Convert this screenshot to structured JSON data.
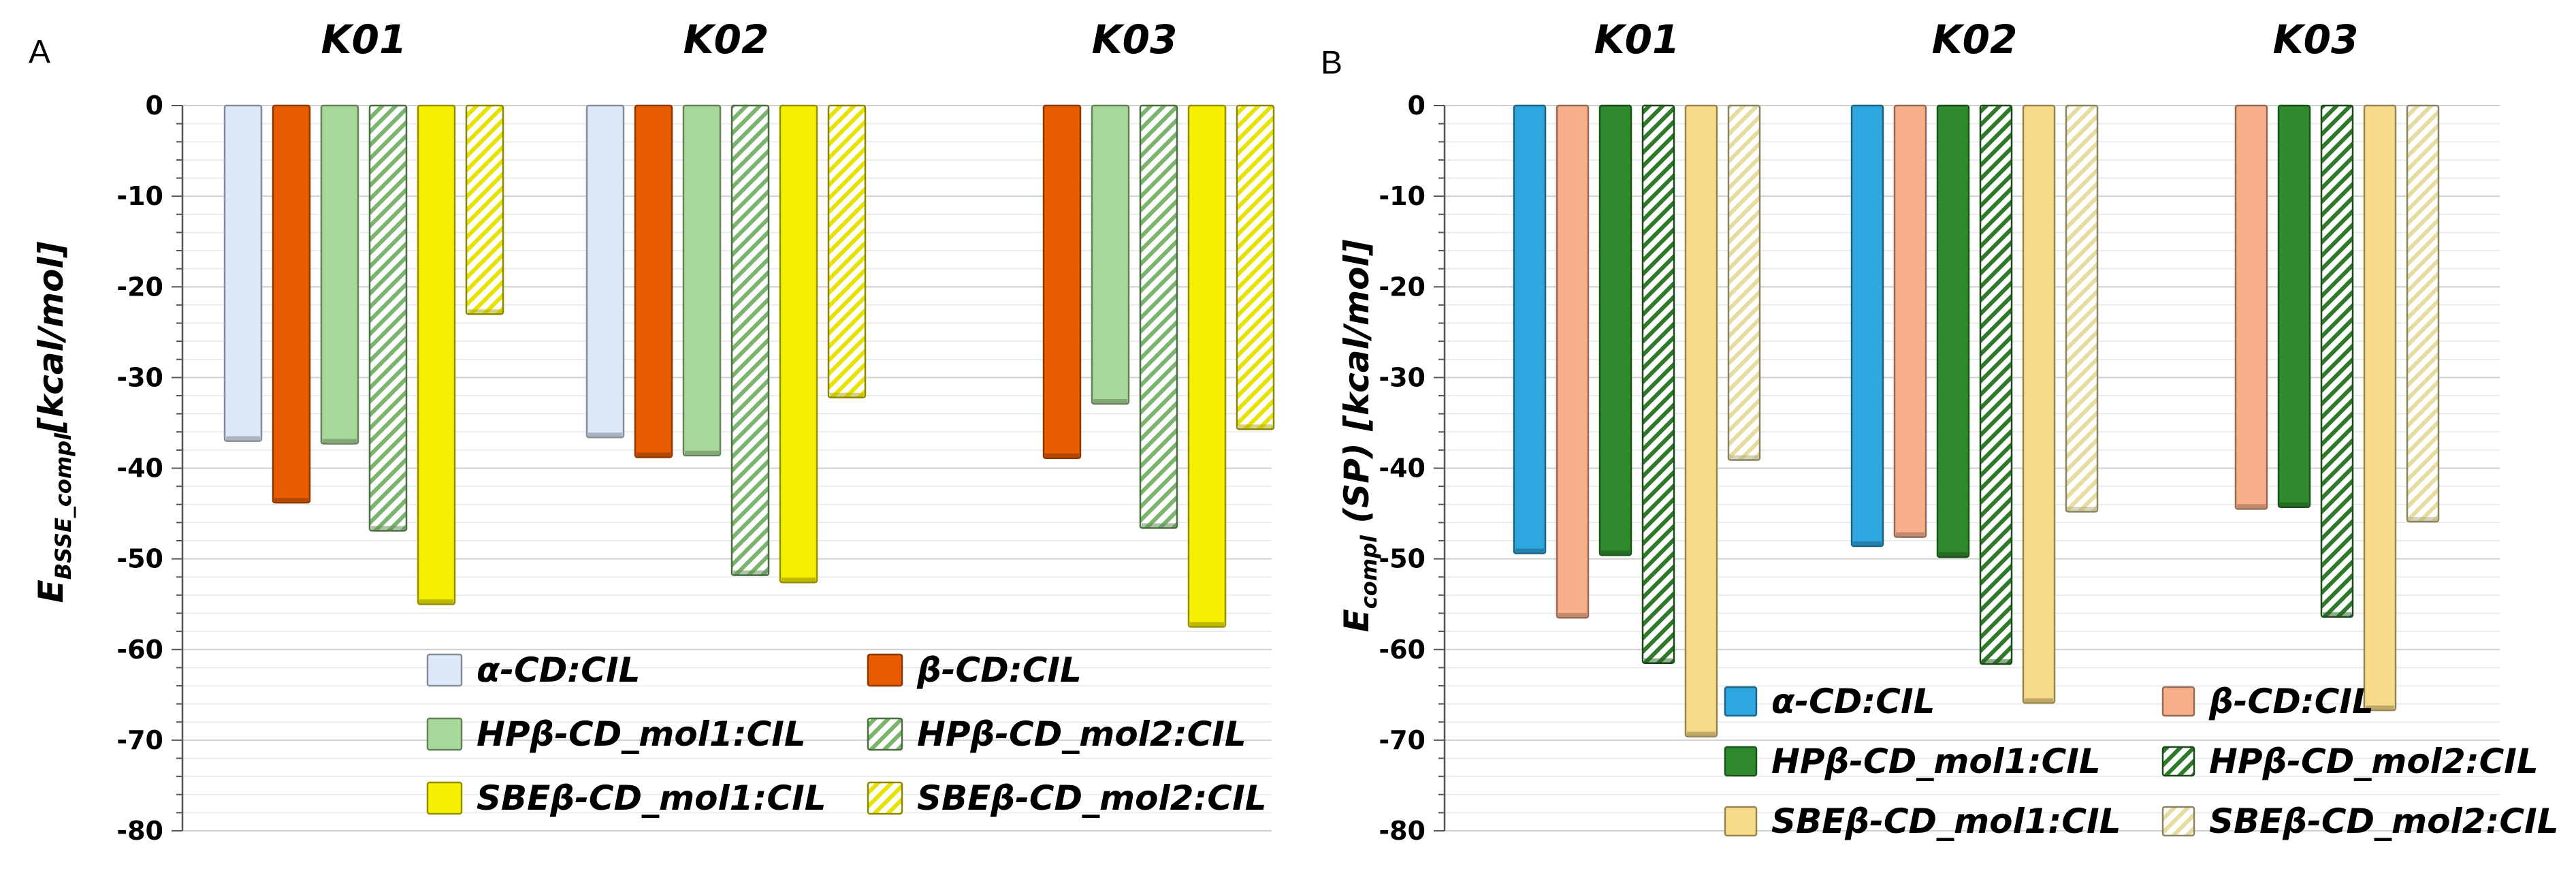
{
  "chart_data": [
    {
      "type": "bar",
      "panel": "A",
      "ylabel_main": "E",
      "ylabel_sub": "BSSE_compl",
      "ylabel_unit": "[kcal/mol]",
      "ylim": [
        -80,
        0
      ],
      "yticks": [
        "0",
        "-10",
        "-20",
        "-30",
        "-40",
        "-50",
        "-60",
        "-70",
        "-80"
      ],
      "categories": [
        "K01",
        "K02",
        "K03"
      ],
      "legend_position": "bottom-right",
      "series": [
        {
          "name": "α-CD:CIL",
          "color": "#dce9f8",
          "hatch": false,
          "values": [
            -37.0,
            -36.6,
            null
          ]
        },
        {
          "name": "β-CD:CIL",
          "color": "#e85d00",
          "hatch": false,
          "values": [
            -43.8,
            -38.8,
            -38.9
          ]
        },
        {
          "name": "HPβ-CD_mol1:CIL",
          "color": "#a8d99a",
          "hatch": false,
          "values": [
            -37.3,
            -38.6,
            -32.9
          ]
        },
        {
          "name": "HPβ-CD_mol2:CIL",
          "color": "#7bb56d",
          "hatch": true,
          "values": [
            -46.9,
            -51.8,
            -46.6
          ]
        },
        {
          "name": "SBEβ-CD_mol1:CIL",
          "color": "#f5ef00",
          "hatch": false,
          "values": [
            -55.0,
            -52.6,
            -57.5
          ]
        },
        {
          "name": "SBEβ-CD_mol2:CIL",
          "color": "#e8e200",
          "hatch": true,
          "values": [
            -23.0,
            -32.2,
            -35.7
          ]
        }
      ]
    },
    {
      "type": "bar",
      "panel": "B",
      "ylabel_main": "E",
      "ylabel_sub": "compl",
      "ylabel_unit": " (SP) [kcal/mol]",
      "ylim": [
        -80,
        0
      ],
      "yticks": [
        "0",
        "-10",
        "-20",
        "-30",
        "-40",
        "-50",
        "-60",
        "-70",
        "-80"
      ],
      "categories": [
        "K01",
        "K02",
        "K03"
      ],
      "legend_position": "bottom-right",
      "series": [
        {
          "name": "α-CD:CIL",
          "color": "#2ea6e0",
          "hatch": false,
          "values": [
            -49.4,
            -48.6,
            null
          ]
        },
        {
          "name": "β-CD:CIL",
          "color": "#f7b08a",
          "hatch": false,
          "values": [
            -56.5,
            -47.6,
            -44.5
          ]
        },
        {
          "name": "HPβ-CD_mol1:CIL",
          "color": "#2e8a2c",
          "hatch": false,
          "values": [
            -49.6,
            -49.8,
            -44.3
          ]
        },
        {
          "name": "HPβ-CD_mol2:CIL",
          "color": "#2e7a2a",
          "hatch": true,
          "values": [
            -61.5,
            -61.6,
            -56.4
          ]
        },
        {
          "name": "SBEβ-CD_mol1:CIL",
          "color": "#f8db88",
          "hatch": false,
          "values": [
            -69.6,
            -65.9,
            -66.7
          ]
        },
        {
          "name": "SBEβ-CD_mol2:CIL",
          "color": "#e6dca0",
          "hatch": true,
          "values": [
            -39.1,
            -44.8,
            -45.9
          ]
        }
      ]
    }
  ]
}
